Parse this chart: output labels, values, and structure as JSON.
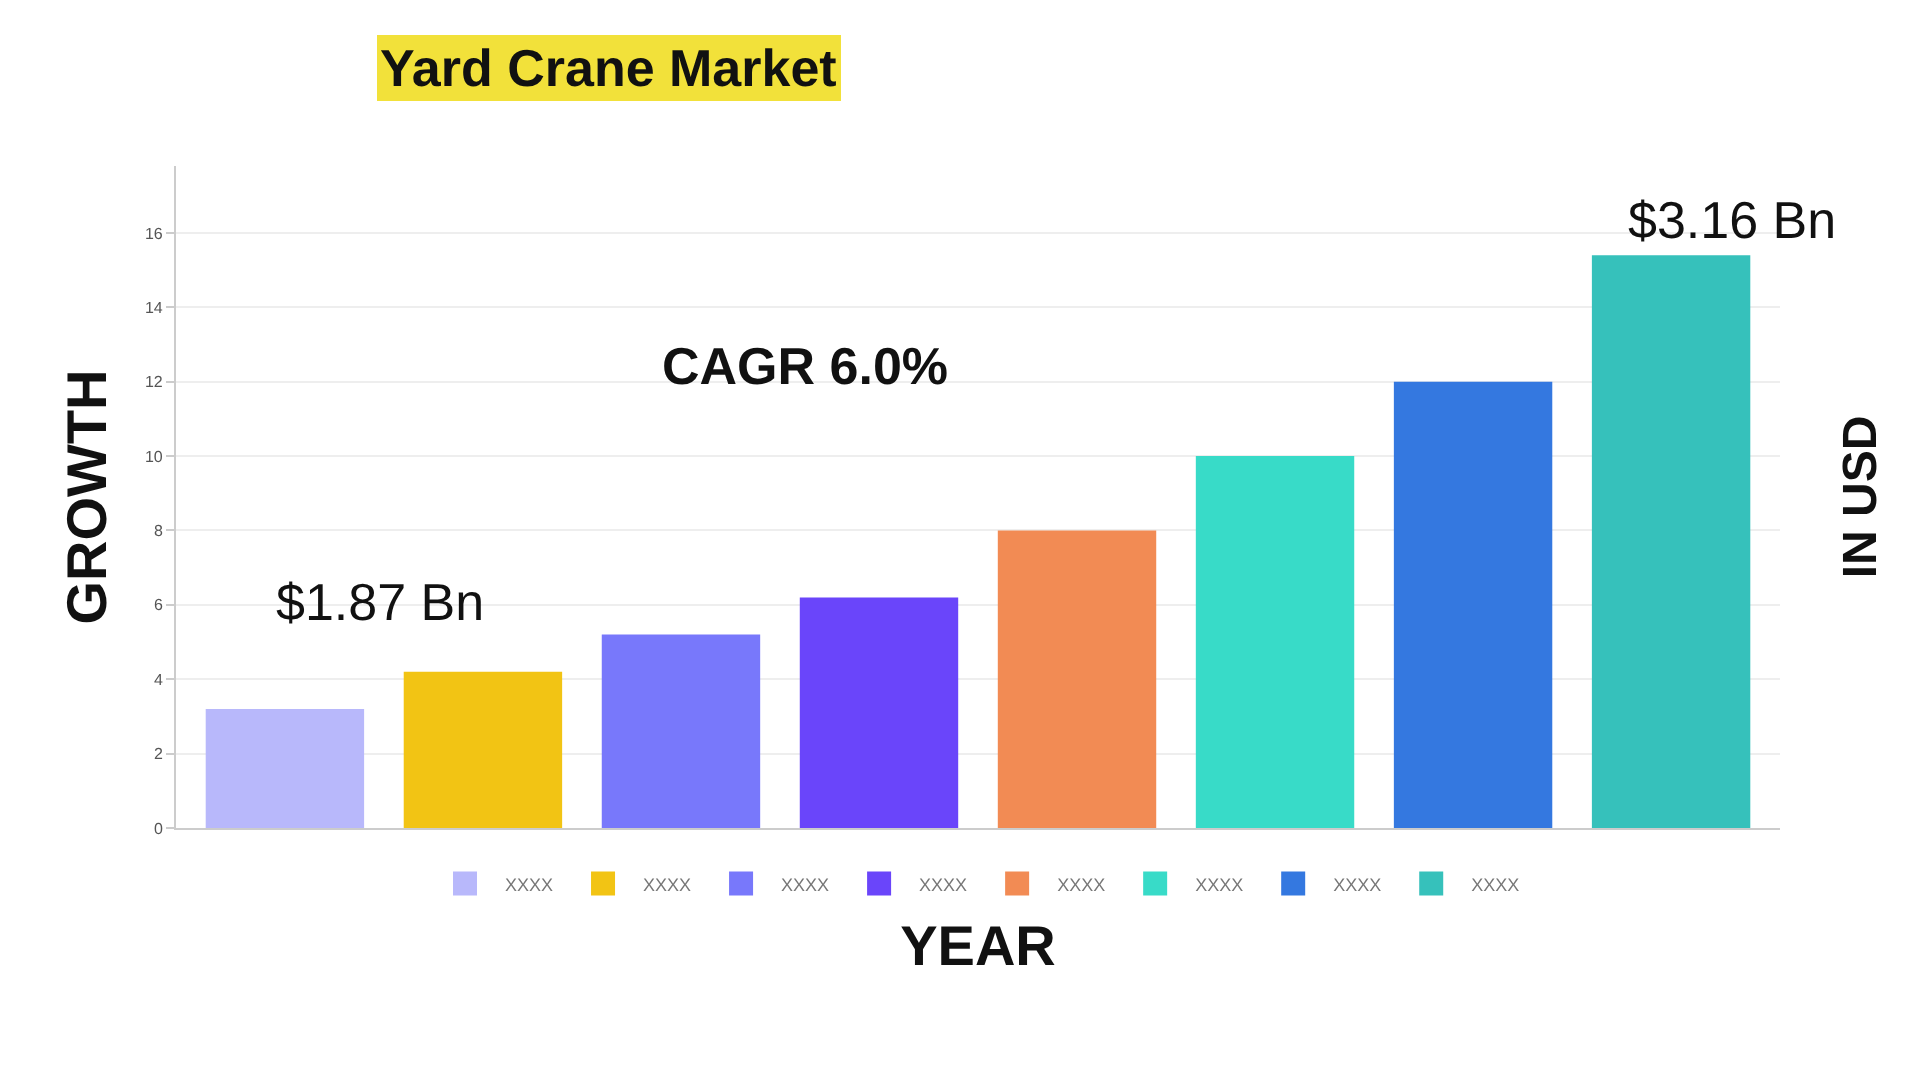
{
  "chart_data": {
    "type": "bar",
    "title": "Yard Crane Market",
    "xlabel": "YEAR",
    "ylabel": "GROWTH",
    "y2label": "IN USD",
    "categories": [
      null,
      null,
      null,
      null,
      null,
      null,
      null,
      null
    ],
    "series": [
      {
        "name": "XXXX",
        "color": "#b8b8fb",
        "values": [
          3.2,
          null,
          null,
          null,
          null,
          null,
          null,
          null
        ]
      },
      {
        "name": "XXXX",
        "color": "#f2c414",
        "values": [
          null,
          4.2,
          null,
          null,
          null,
          null,
          null,
          null
        ]
      },
      {
        "name": "XXXX",
        "color": "#7878fb",
        "values": [
          null,
          null,
          5.2,
          null,
          null,
          null,
          null,
          null
        ]
      },
      {
        "name": "XXXX",
        "color": "#6a45fa",
        "values": [
          null,
          null,
          null,
          6.2,
          null,
          null,
          null,
          null
        ]
      },
      {
        "name": "XXXX",
        "color": "#f28b54",
        "values": [
          null,
          null,
          null,
          null,
          8.0,
          null,
          null,
          null
        ]
      },
      {
        "name": "XXXX",
        "color": "#38dbc8",
        "values": [
          null,
          null,
          null,
          null,
          null,
          10.0,
          null,
          null
        ]
      },
      {
        "name": "XXXX",
        "color": "#3478e0",
        "values": [
          null,
          null,
          null,
          null,
          null,
          null,
          12.0,
          null
        ]
      },
      {
        "name": "XXXX",
        "color": "#36c1bb",
        "values": [
          null,
          null,
          null,
          null,
          null,
          null,
          null,
          15.4
        ]
      }
    ],
    "ylim": [
      0,
      17.8
    ],
    "yticks": [
      0,
      2,
      4,
      6,
      8,
      10,
      12,
      14,
      16
    ],
    "grid": "y",
    "legend": "bottom",
    "annotations": [
      "$1.87 Bn",
      "CAGR 6.0%",
      "$3.16 Bn"
    ]
  }
}
